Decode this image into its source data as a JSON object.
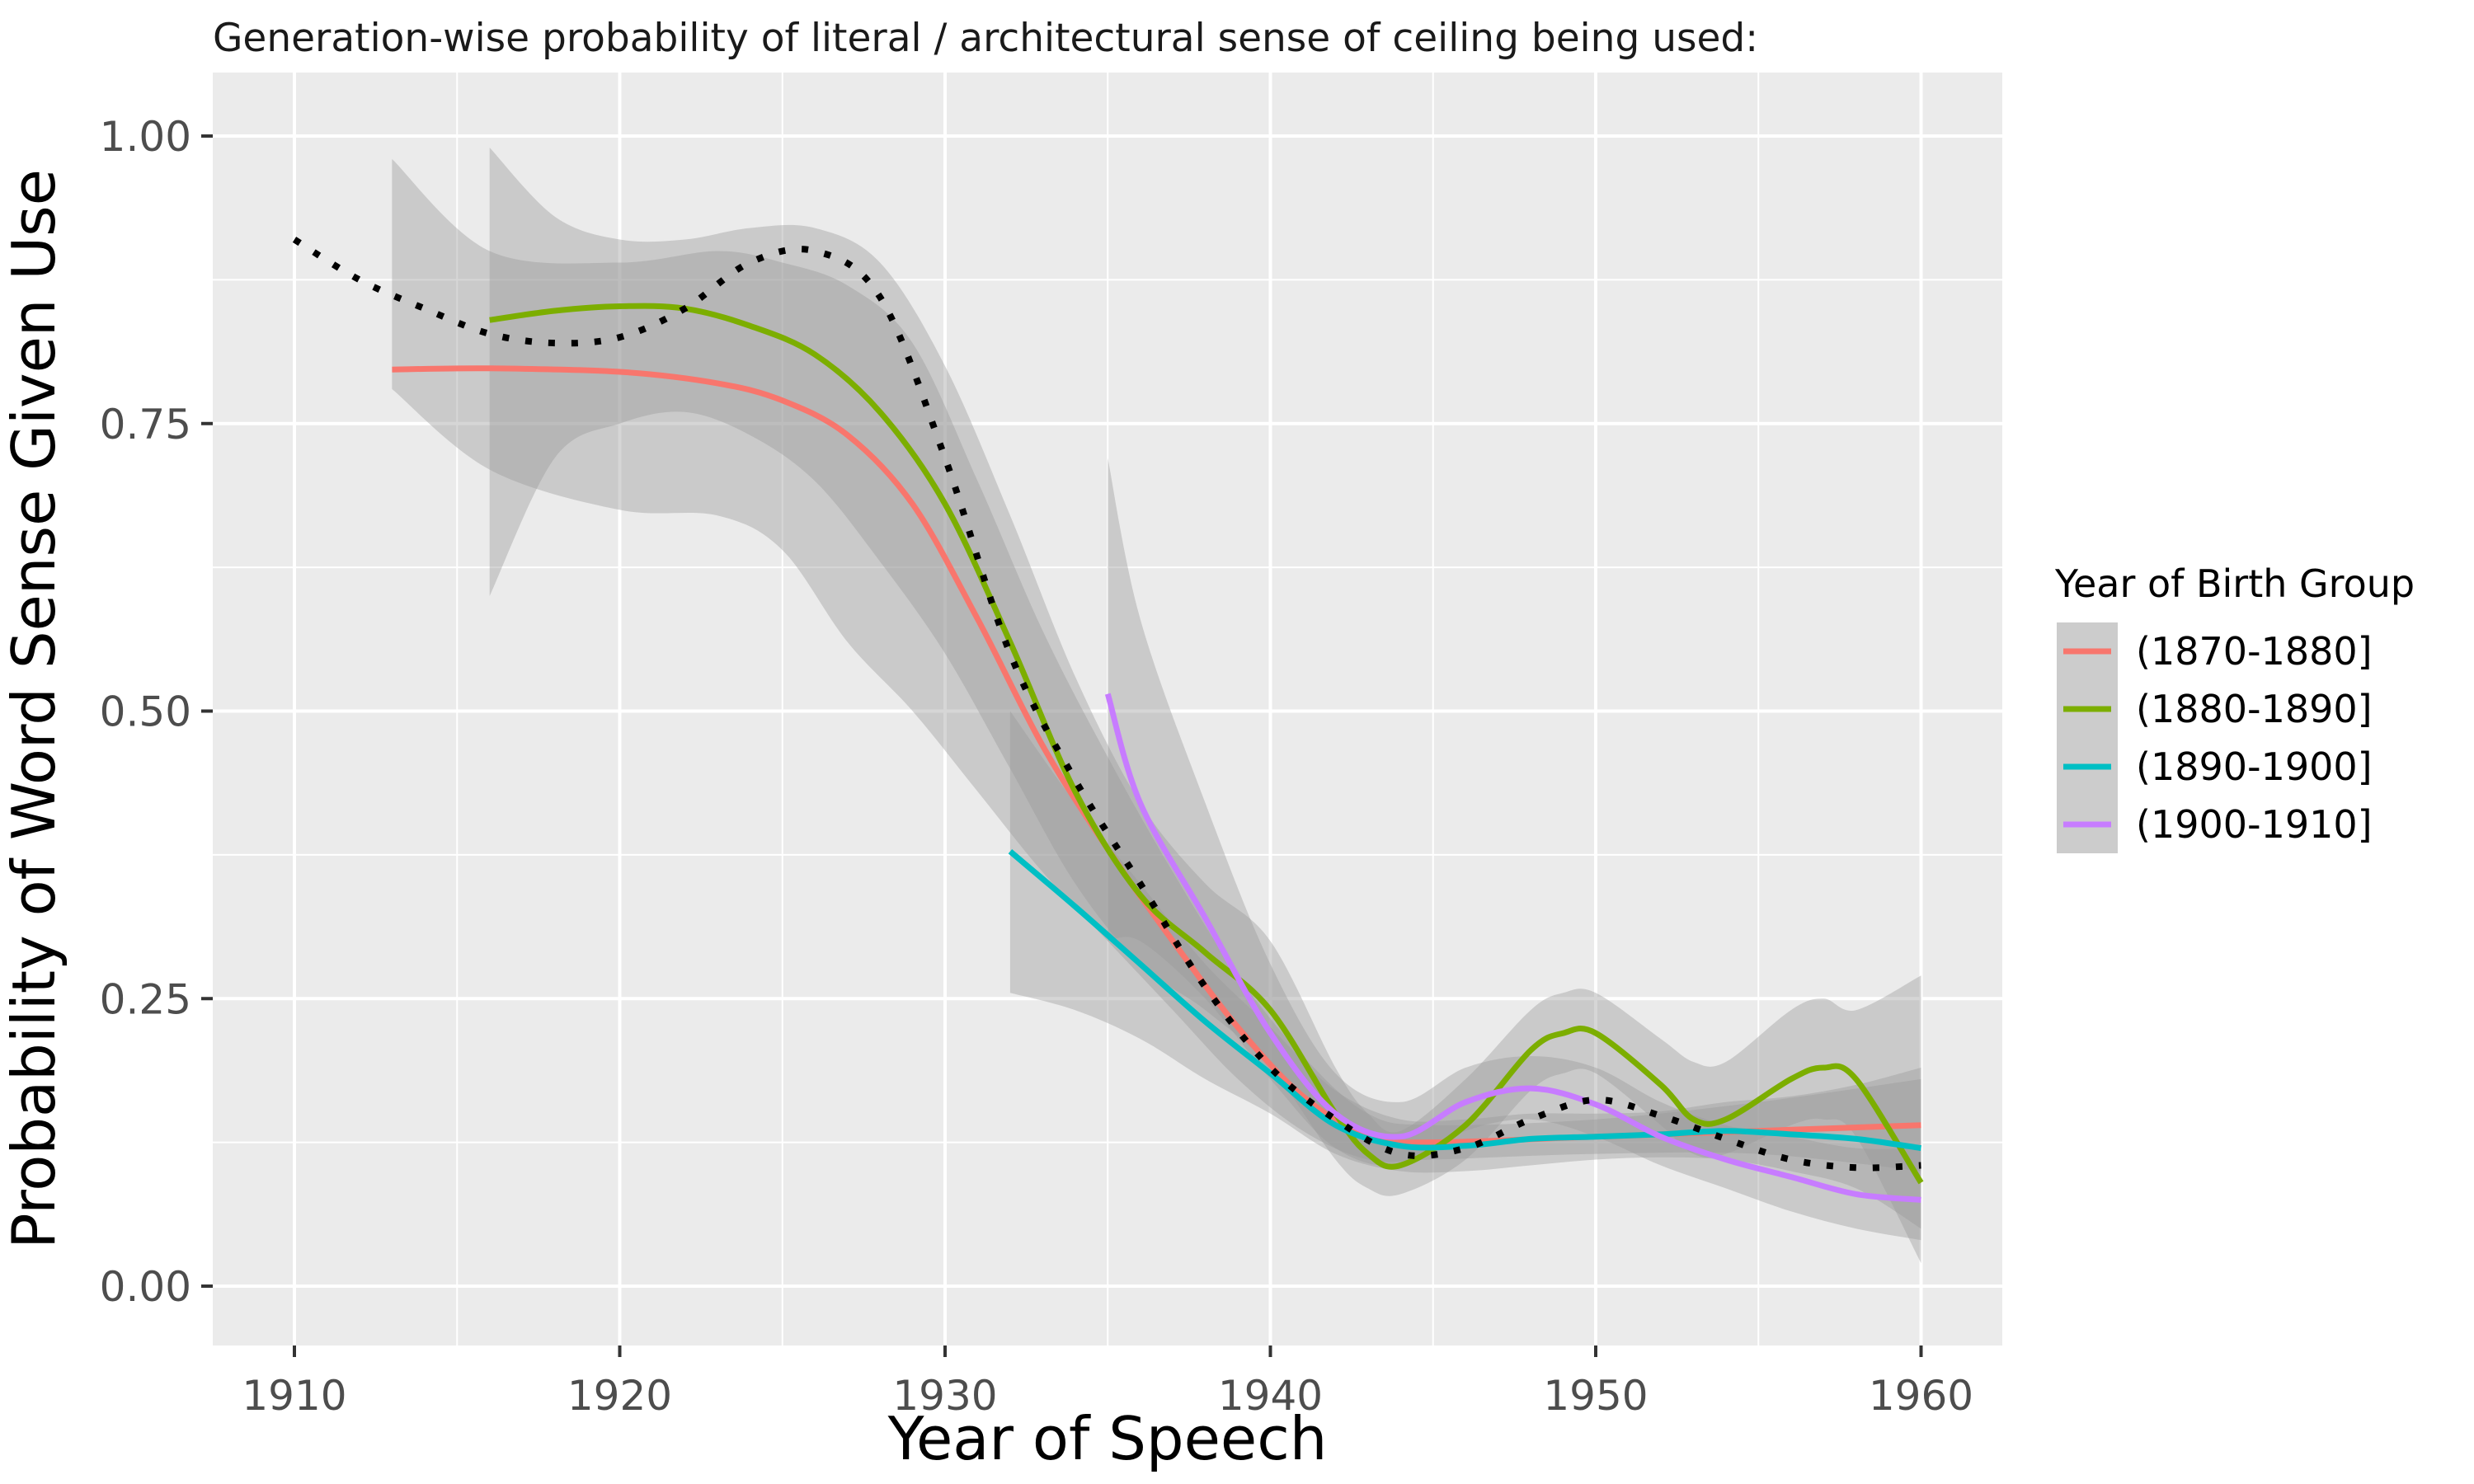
{
  "chart_data": {
    "type": "line",
    "title": "Generation-wise probability of literal / architectural sense of ceiling being used:",
    "xlabel": "Year of Speech",
    "ylabel": "Probability of Word Sense Given Use",
    "xlim": [
      1907.5,
      1962.5
    ],
    "ylim": [
      -0.05,
      1.05
    ],
    "x_ticks": [
      1910,
      1920,
      1930,
      1940,
      1950,
      1960
    ],
    "x_tick_labels": [
      "1910",
      "1920",
      "1930",
      "1940",
      "1950",
      "1960"
    ],
    "y_ticks": [
      0,
      0.25,
      0.5,
      0.75,
      1
    ],
    "y_tick_labels": [
      "0.00",
      "0.25",
      "0.50",
      "0.75",
      "1.00"
    ],
    "grid": true,
    "legend": {
      "title": "Year of Birth Group",
      "position": "right"
    },
    "series": [
      {
        "name": "(1870-1880]",
        "color": "#F8766D",
        "x": [
          1913,
          1916,
          1920,
          1923,
          1925,
          1927,
          1929,
          1931,
          1933,
          1935,
          1937,
          1939,
          1941,
          1943,
          1945,
          1950,
          1955,
          1960
        ],
        "y": [
          0.797,
          0.798,
          0.795,
          0.785,
          0.77,
          0.74,
          0.68,
          0.58,
          0.47,
          0.38,
          0.3,
          0.225,
          0.165,
          0.13,
          0.125,
          0.13,
          0.135,
          0.14
        ],
        "lower": [
          0.78,
          0.71,
          0.675,
          0.67,
          0.64,
          0.56,
          0.5,
          0.43,
          0.36,
          0.3,
          0.24,
          0.18,
          0.135,
          0.11,
          0.11,
          0.115,
          0.115,
          0.1
        ],
        "upper": [
          0.98,
          0.9,
          0.89,
          0.9,
          0.89,
          0.87,
          0.82,
          0.7,
          0.57,
          0.46,
          0.36,
          0.27,
          0.2,
          0.15,
          0.14,
          0.145,
          0.16,
          0.18
        ]
      },
      {
        "name": "(1880-1890]",
        "color": "#7CAE00",
        "x": [
          1916,
          1918,
          1920,
          1922,
          1924,
          1926,
          1928,
          1930,
          1932,
          1934,
          1936,
          1938,
          1940,
          1942,
          1943,
          1944,
          1946,
          1948,
          1949,
          1950,
          1952,
          1953,
          1954,
          1956,
          1957,
          1958,
          1960
        ],
        "y": [
          0.84,
          0.848,
          0.852,
          0.85,
          0.835,
          0.81,
          0.76,
          0.68,
          0.56,
          0.43,
          0.34,
          0.29,
          0.24,
          0.15,
          0.115,
          0.105,
          0.14,
          0.205,
          0.22,
          0.22,
          0.175,
          0.145,
          0.145,
          0.18,
          0.19,
          0.18,
          0.09
        ],
        "lower": [
          0.6,
          0.72,
          0.75,
          0.76,
          0.74,
          0.7,
          0.63,
          0.55,
          0.45,
          0.35,
          0.28,
          0.24,
          0.19,
          0.11,
          0.085,
          0.08,
          0.11,
          0.17,
          0.185,
          0.185,
          0.14,
          0.115,
          0.115,
          0.14,
          0.145,
          0.13,
          0.02
        ],
        "upper": [
          0.99,
          0.93,
          0.91,
          0.91,
          0.92,
          0.92,
          0.89,
          0.8,
          0.67,
          0.53,
          0.42,
          0.35,
          0.3,
          0.19,
          0.15,
          0.135,
          0.18,
          0.24,
          0.255,
          0.255,
          0.215,
          0.195,
          0.195,
          0.24,
          0.25,
          0.24,
          0.27
        ]
      },
      {
        "name": "(1890-1900]",
        "color": "#00BFC4",
        "x": [
          1932,
          1934,
          1936,
          1938,
          1940,
          1942,
          1944,
          1946,
          1948,
          1950,
          1952,
          1954,
          1956,
          1958,
          1960
        ],
        "y": [
          0.378,
          0.33,
          0.28,
          0.23,
          0.185,
          0.14,
          0.122,
          0.122,
          0.128,
          0.13,
          0.132,
          0.135,
          0.132,
          0.128,
          0.12
        ],
        "lower": [
          0.255,
          0.24,
          0.215,
          0.18,
          0.15,
          0.115,
          0.1,
          0.1,
          0.105,
          0.11,
          0.112,
          0.11,
          0.1,
          0.085,
          0.05
        ],
        "upper": [
          0.5,
          0.42,
          0.35,
          0.28,
          0.225,
          0.17,
          0.145,
          0.145,
          0.15,
          0.15,
          0.152,
          0.16,
          0.165,
          0.175,
          0.19
        ]
      },
      {
        "name": "(1900-1910]",
        "color": "#C77CFF",
        "x": [
          1935,
          1936,
          1938,
          1940,
          1942,
          1944,
          1946,
          1948,
          1950,
          1952,
          1954,
          1956,
          1958,
          1960
        ],
        "y": [
          0.515,
          0.42,
          0.32,
          0.22,
          0.15,
          0.13,
          0.16,
          0.172,
          0.158,
          0.13,
          0.11,
          0.095,
          0.08,
          0.075
        ],
        "lower": [
          0.3,
          0.3,
          0.25,
          0.18,
          0.12,
          0.105,
          0.135,
          0.145,
          0.13,
          0.105,
          0.085,
          0.065,
          0.05,
          0.04
        ],
        "upper": [
          0.72,
          0.58,
          0.42,
          0.28,
          0.185,
          0.16,
          0.19,
          0.2,
          0.19,
          0.16,
          0.14,
          0.13,
          0.12,
          0.12
        ]
      },
      {
        "color": "#000000",
        "style": "dotted",
        "x": [
          1910,
          1912,
          1914,
          1916,
          1918,
          1920,
          1922,
          1924,
          1926,
          1928,
          1930,
          1932,
          1934,
          1936,
          1938,
          1940,
          1942,
          1944,
          1946,
          1948,
          1950,
          1952,
          1954,
          1956,
          1958,
          1960
        ],
        "y": [
          0.91,
          0.875,
          0.85,
          0.828,
          0.82,
          0.825,
          0.85,
          0.89,
          0.9,
          0.86,
          0.72,
          0.55,
          0.44,
          0.35,
          0.26,
          0.19,
          0.145,
          0.115,
          0.12,
          0.145,
          0.162,
          0.148,
          0.128,
          0.11,
          0.103,
          0.105
        ]
      }
    ]
  },
  "legend_key_fill": "#cccccc",
  "ribbon_fill": "#999999"
}
